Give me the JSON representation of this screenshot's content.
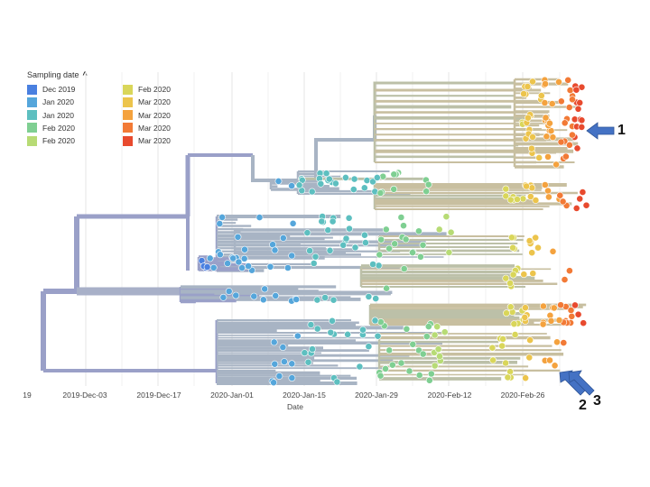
{
  "legend": {
    "title": "Sampling date",
    "toggle_icon": "chevron-up-icon",
    "items": [
      {
        "label": "Dec 2019",
        "color": "#4a80e0"
      },
      {
        "label": "Jan 2020",
        "color": "#55a6db"
      },
      {
        "label": "Jan 2020",
        "color": "#5dbfc0"
      },
      {
        "label": "Feb 2020",
        "color": "#7fcf92"
      },
      {
        "label": "Feb 2020",
        "color": "#b7db75"
      },
      {
        "label": "Feb 2020",
        "color": "#d9d65a"
      },
      {
        "label": "Mar 2020",
        "color": "#ecc44c"
      },
      {
        "label": "Mar 2020",
        "color": "#f4a23e"
      },
      {
        "label": "Mar 2020",
        "color": "#f27a36"
      },
      {
        "label": "Mar 2020",
        "color": "#e84a2e"
      }
    ]
  },
  "axis": {
    "label": "Date",
    "ticks": [
      "19",
      "2019-Dec-03",
      "2019-Dec-17",
      "2020-Jan-01",
      "2020-Jan-15",
      "2020-Jan-29",
      "2020-Feb-12",
      "2020-Feb-26"
    ]
  },
  "annotations": [
    {
      "label": "1",
      "target": "tip in top Mar 2020 clade"
    },
    {
      "label": "2",
      "target": "tip in bottom clade"
    },
    {
      "label": "3",
      "target": "tip in bottom clade"
    }
  ],
  "colors": {
    "root_branch": "#9aa0c8",
    "early_branch": "#a8b4c4",
    "mid_branch": "#bcc0a8",
    "late_branch": "#c8bfa0",
    "grid": "#e6e6e6",
    "arrow": "#4472c4"
  }
}
